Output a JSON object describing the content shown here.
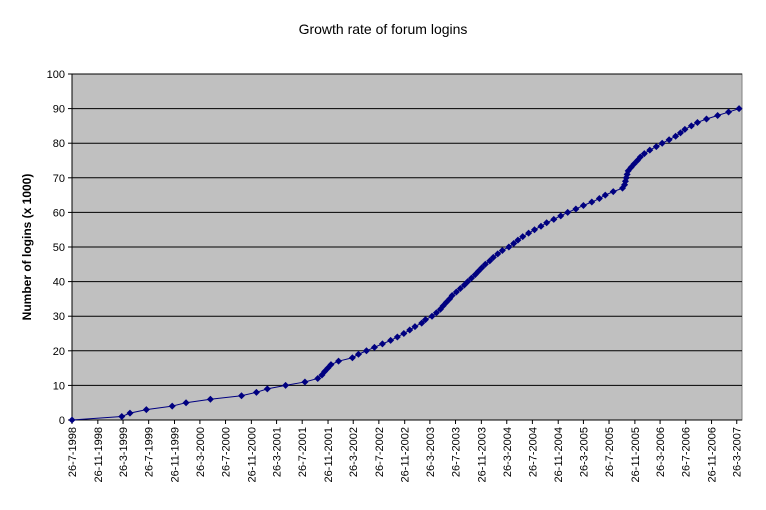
{
  "chart_data": {
    "type": "line",
    "title": "Growth rate of forum logins",
    "y_label": "Number of logins (x 1000)",
    "color": "#000080",
    "plot_background": "#c0c0c0",
    "grid": true,
    "x": [
      "1998-07-26",
      "1999-03-20",
      "1999-04-28",
      "1999-07-15",
      "1999-11-15",
      "2000-01-20",
      "2000-05-15",
      "2000-10-10",
      "2000-12-20",
      "2001-02-10",
      "2001-05-08",
      "2001-08-08",
      "2001-10-08",
      "2001-10-28",
      "2001-11-10",
      "2001-11-25",
      "2001-12-10",
      "2002-01-15",
      "2002-03-22",
      "2002-04-20",
      "2002-05-28",
      "2002-07-05",
      "2002-08-12",
      "2002-09-20",
      "2002-10-22",
      "2002-11-22",
      "2002-12-20",
      "2003-01-14",
      "2003-02-15",
      "2003-03-05",
      "2003-04-05",
      "2003-04-26",
      "2003-05-15",
      "2003-05-28",
      "2003-06-12",
      "2003-06-28",
      "2003-07-10",
      "2003-07-30",
      "2003-08-18",
      "2003-09-06",
      "2003-09-22",
      "2003-10-10",
      "2003-10-28",
      "2003-11-12",
      "2003-11-28",
      "2003-12-15",
      "2004-01-05",
      "2004-01-22",
      "2004-02-12",
      "2004-03-05",
      "2004-04-05",
      "2004-04-28",
      "2004-05-18",
      "2004-06-10",
      "2004-07-08",
      "2004-08-05",
      "2004-09-05",
      "2004-10-02",
      "2004-11-05",
      "2004-12-08",
      "2005-01-10",
      "2005-02-18",
      "2005-03-26",
      "2005-05-05",
      "2005-06-10",
      "2005-07-08",
      "2005-08-15",
      "2005-09-28",
      "2005-10-08",
      "2005-10-12",
      "2005-10-16",
      "2005-10-20",
      "2005-10-25",
      "2005-11-08",
      "2005-11-22",
      "2005-12-08",
      "2005-12-22",
      "2006-01-10",
      "2006-02-05",
      "2006-03-08",
      "2006-04-05",
      "2006-05-08",
      "2006-06-08",
      "2006-07-01",
      "2006-07-22",
      "2006-08-22",
      "2006-09-20",
      "2006-11-02",
      "2006-12-25",
      "2007-02-15",
      "2007-04-06"
    ],
    "values": [
      0,
      1,
      2,
      3,
      4,
      5,
      6,
      7,
      8,
      9,
      10,
      11,
      12,
      13,
      14,
      15,
      16,
      17,
      18,
      19,
      20,
      21,
      22,
      23,
      24,
      25,
      26,
      27,
      28,
      29,
      30,
      31,
      32,
      33,
      34,
      35,
      36,
      37,
      38,
      39,
      40,
      41,
      42,
      43,
      44,
      45,
      46,
      47,
      48,
      49,
      50,
      51,
      52,
      53,
      54,
      55,
      56,
      57,
      58,
      59,
      60,
      61,
      62,
      63,
      64,
      65,
      66,
      67,
      68,
      69,
      70,
      71,
      72,
      73,
      74,
      75,
      76,
      77,
      78,
      79,
      80,
      81,
      82,
      83,
      84,
      85,
      86,
      87,
      88,
      89,
      90
    ],
    "xlim": [
      "1998-07-26",
      "2007-04-20"
    ],
    "xticks": [
      {
        "value": "1998-07-26",
        "label": "26-7-1998"
      },
      {
        "value": "1998-11-26",
        "label": "26-11-1998"
      },
      {
        "value": "1999-03-26",
        "label": "26-3-1999"
      },
      {
        "value": "1999-07-26",
        "label": "26-7-1999"
      },
      {
        "value": "1999-11-26",
        "label": "26-11-1999"
      },
      {
        "value": "2000-03-26",
        "label": "26-3-2000"
      },
      {
        "value": "2000-07-26",
        "label": "26-7-2000"
      },
      {
        "value": "2000-11-26",
        "label": "26-11-2000"
      },
      {
        "value": "2001-03-26",
        "label": "26-3-2001"
      },
      {
        "value": "2001-07-26",
        "label": "26-7-2001"
      },
      {
        "value": "2001-11-26",
        "label": "26-11-2001"
      },
      {
        "value": "2002-03-26",
        "label": "26-3-2002"
      },
      {
        "value": "2002-07-26",
        "label": "26-7-2002"
      },
      {
        "value": "2002-11-26",
        "label": "26-11-2002"
      },
      {
        "value": "2003-03-26",
        "label": "26-3-2003"
      },
      {
        "value": "2003-07-26",
        "label": "26-7-2003"
      },
      {
        "value": "2003-11-26",
        "label": "26-11-2003"
      },
      {
        "value": "2004-03-26",
        "label": "26-3-2004"
      },
      {
        "value": "2004-07-26",
        "label": "26-7-2004"
      },
      {
        "value": "2004-11-26",
        "label": "26-11-2004"
      },
      {
        "value": "2005-03-26",
        "label": "26-3-2005"
      },
      {
        "value": "2005-07-26",
        "label": "26-7-2005"
      },
      {
        "value": "2005-11-26",
        "label": "26-11-2005"
      },
      {
        "value": "2006-03-26",
        "label": "26-3-2006"
      },
      {
        "value": "2006-07-26",
        "label": "26-7-2006"
      },
      {
        "value": "2006-11-26",
        "label": "26-11-2006"
      },
      {
        "value": "2007-03-26",
        "label": "26-3-2007"
      }
    ],
    "ylim": [
      0,
      100
    ],
    "yticks": [
      0,
      10,
      20,
      30,
      40,
      50,
      60,
      70,
      80,
      90,
      100
    ]
  }
}
